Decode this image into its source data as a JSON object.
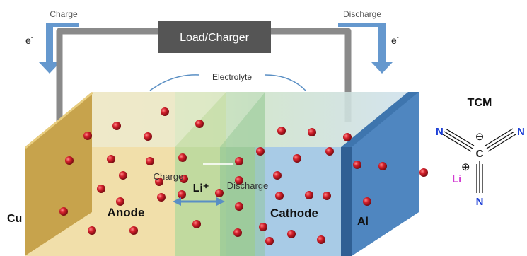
{
  "diagram": {
    "load_label": "Load/Charger",
    "charge_label": "Charge",
    "discharge_label": "Discharge",
    "electron_left": "e",
    "electron_right": "e",
    "electron_superscript": "-",
    "electrolyte_label": "Electrolyte",
    "anode_label": "Anode",
    "cathode_label": "Cathode",
    "cu_label": "Cu",
    "al_label": "Al",
    "charge_arrow_label": "Charge",
    "discharge_arrow_label": "Discharge",
    "li_ion_label": "Li⁺"
  },
  "molecule": {
    "title": "TCM",
    "n_left": "N",
    "n_right": "N",
    "n_bottom": "N",
    "c_center": "C",
    "minus_sign": "⊖",
    "li_label": "Li",
    "plus_sign": "⊕"
  },
  "colors": {
    "load_box": "#555555",
    "wire": "#8a8a8a",
    "arrow_blue": "#4a86c5",
    "copper": "#d9b860",
    "anode": "#f1dfaa",
    "separator": "#9ec98a",
    "cathode": "#a8cbe6",
    "aluminum": "#4f86c0",
    "ion": "#c8202c",
    "nitrogen": "#1d3fd6",
    "lithium": "#d23bd2"
  }
}
